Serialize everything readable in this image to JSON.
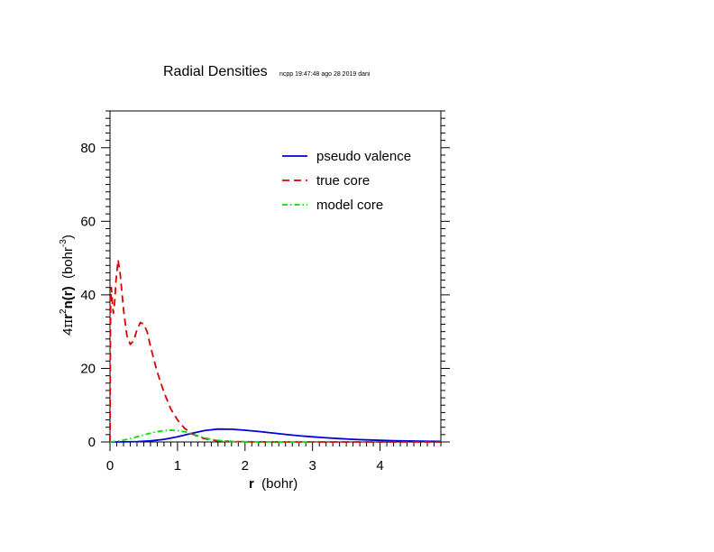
{
  "chart_data": {
    "type": "line",
    "title": "Radial Densities",
    "subtitle": "ncpp 19:47:48 ago 28 2019 dani",
    "xlabel": {
      "bold": "r",
      "rest": "  (bohr)"
    },
    "ylabel": {
      "prefix": "4",
      "pi": "π",
      "r": "r",
      "sup": "2",
      "nr": "n(r)",
      "unit_pre": "  (bohr",
      "unit_sup": "-3",
      "unit_post": ")"
    },
    "xlim": [
      0,
      4.9
    ],
    "ylim": [
      0,
      90
    ],
    "xticks": [
      "0",
      "1",
      "2",
      "3",
      "4"
    ],
    "yticks": [
      "0",
      "20",
      "40",
      "60",
      "80"
    ],
    "grid": false,
    "legend_position": "top-right",
    "series": [
      {
        "name": "pseudo valence",
        "color": "#0000dd",
        "dash": "solid",
        "x": [
          0,
          0.2,
          0.4,
          0.6,
          0.8,
          1.0,
          1.2,
          1.4,
          1.6,
          1.8,
          2.0,
          2.2,
          2.4,
          2.6,
          2.8,
          3.0,
          3.2,
          3.4,
          3.6,
          3.8,
          4.0,
          4.2,
          4.4,
          4.6,
          4.9
        ],
        "y": [
          0,
          0.02,
          0.1,
          0.3,
          0.7,
          1.4,
          2.3,
          3.1,
          3.5,
          3.45,
          3.2,
          2.85,
          2.45,
          2.05,
          1.7,
          1.4,
          1.12,
          0.9,
          0.72,
          0.57,
          0.45,
          0.35,
          0.27,
          0.2,
          0.15
        ]
      },
      {
        "name": "true core",
        "color": "#dd0000",
        "dash": "8,5",
        "x": [
          0,
          0.005,
          0.01,
          0.02,
          0.035,
          0.05,
          0.07,
          0.09,
          0.12,
          0.15,
          0.2,
          0.25,
          0.3,
          0.35,
          0.4,
          0.45,
          0.5,
          0.55,
          0.6,
          0.7,
          0.8,
          0.9,
          1.0,
          1.1,
          1.2,
          1.3,
          1.4,
          1.5,
          1.6,
          1.8,
          2.0,
          2.2,
          2.5,
          3.0,
          3.5,
          4.0,
          4.9
        ],
        "y": [
          0,
          25,
          38,
          42,
          38,
          35,
          38,
          44,
          49.5,
          46,
          36,
          29,
          26.5,
          27.5,
          30.5,
          32.5,
          32,
          30,
          26,
          19,
          13.5,
          9,
          6,
          3.8,
          2.3,
          1.5,
          0.9,
          0.55,
          0.32,
          0.12,
          0.05,
          0.02,
          0,
          0,
          0,
          0,
          0
        ]
      },
      {
        "name": "model core",
        "color": "#00dd00",
        "dash": "6,3,1.5,3",
        "x": [
          0,
          0.1,
          0.2,
          0.3,
          0.4,
          0.5,
          0.6,
          0.7,
          0.8,
          0.9,
          1.0,
          1.1,
          1.2,
          1.3,
          1.4,
          1.5,
          1.6,
          1.8,
          2.0,
          2.2,
          2.4,
          2.6,
          2.8,
          3.0
        ],
        "y": [
          0,
          0.2,
          0.5,
          0.9,
          1.4,
          1.9,
          2.4,
          2.8,
          3.1,
          3.2,
          3.1,
          2.8,
          2.3,
          1.7,
          1.15,
          0.7,
          0.42,
          0.15,
          0.05,
          0.015,
          0,
          0,
          0,
          0
        ]
      }
    ]
  }
}
